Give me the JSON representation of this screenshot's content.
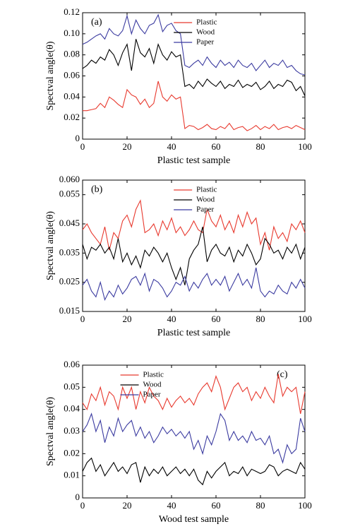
{
  "chart_data": [
    {
      "type": "line",
      "panel_label": "(a)",
      "panel_label_position": "left",
      "legend": "upper center",
      "xlabel": "Plastic test sample",
      "ylabel": "Spectval angle(θ)",
      "xlim": [
        0,
        100
      ],
      "xticks": [
        0,
        20,
        40,
        60,
        80,
        100
      ],
      "ylim": [
        0,
        0.12
      ],
      "yticks": [
        0,
        0.02,
        0.04,
        0.06,
        0.08,
        {
          "value": 0.1,
          "label": "0.10"
        },
        0.12
      ],
      "x": [
        0,
        2,
        4,
        6,
        8,
        10,
        12,
        14,
        16,
        18,
        20,
        22,
        24,
        26,
        28,
        30,
        32,
        34,
        36,
        38,
        40,
        42,
        44,
        46,
        48,
        50,
        52,
        54,
        56,
        58,
        60,
        62,
        64,
        66,
        68,
        70,
        72,
        74,
        76,
        78,
        80,
        82,
        84,
        86,
        88,
        90,
        92,
        94,
        96,
        98,
        100
      ],
      "series": [
        {
          "name": "Plastic",
          "color": "#e8392e",
          "values": [
            0.027,
            0.027,
            0.028,
            0.029,
            0.034,
            0.03,
            0.04,
            0.037,
            0.033,
            0.03,
            0.047,
            0.042,
            0.04,
            0.033,
            0.038,
            0.03,
            0.034,
            0.055,
            0.04,
            0.036,
            0.042,
            0.038,
            0.04,
            0.01,
            0.013,
            0.012,
            0.009,
            0.011,
            0.014,
            0.01,
            0.009,
            0.012,
            0.01,
            0.015,
            0.009,
            0.011,
            0.012,
            0.008,
            0.01,
            0.013,
            0.009,
            0.012,
            0.01,
            0.014,
            0.009,
            0.011,
            0.012,
            0.01,
            0.013,
            0.011,
            0.009
          ]
        },
        {
          "name": "Wood",
          "color": "#000000",
          "values": [
            0.067,
            0.07,
            0.075,
            0.072,
            0.078,
            0.075,
            0.085,
            0.08,
            0.07,
            0.082,
            0.09,
            0.065,
            0.095,
            0.082,
            0.078,
            0.086,
            0.072,
            0.09,
            0.08,
            0.075,
            0.083,
            0.078,
            0.08,
            0.05,
            0.052,
            0.048,
            0.055,
            0.05,
            0.057,
            0.053,
            0.05,
            0.055,
            0.048,
            0.052,
            0.05,
            0.056,
            0.049,
            0.052,
            0.05,
            0.054,
            0.047,
            0.05,
            0.055,
            0.048,
            0.052,
            0.05,
            0.056,
            0.054,
            0.046,
            0.05,
            0.041
          ]
        },
        {
          "name": "Paper",
          "color": "#3b3ba0",
          "values": [
            0.09,
            0.092,
            0.095,
            0.098,
            0.1,
            0.095,
            0.105,
            0.1,
            0.098,
            0.103,
            0.117,
            0.1,
            0.113,
            0.105,
            0.1,
            0.108,
            0.11,
            0.118,
            0.102,
            0.108,
            0.11,
            0.103,
            0.1,
            0.07,
            0.068,
            0.072,
            0.075,
            0.07,
            0.078,
            0.072,
            0.068,
            0.075,
            0.07,
            0.073,
            0.068,
            0.075,
            0.07,
            0.068,
            0.072,
            0.065,
            0.07,
            0.075,
            0.068,
            0.072,
            0.07,
            0.075,
            0.068,
            0.07,
            0.065,
            0.062,
            0.061
          ]
        }
      ]
    },
    {
      "type": "line",
      "panel_label": "(b)",
      "panel_label_position": "left",
      "legend": "upper center",
      "xlabel": "Plastic test sample",
      "ylabel": "Spectval angle(θ)",
      "xlim": [
        0,
        100
      ],
      "xticks": [
        0,
        20,
        40,
        60,
        80,
        100
      ],
      "ylim": [
        0.015,
        0.06
      ],
      "yticks": [
        0.015,
        0.025,
        0.035,
        0.045,
        0.055,
        {
          "value": 0.06,
          "label": "0.060"
        }
      ],
      "x": [
        0,
        2,
        4,
        6,
        8,
        10,
        12,
        14,
        16,
        18,
        20,
        22,
        24,
        26,
        28,
        30,
        32,
        34,
        36,
        38,
        40,
        42,
        44,
        46,
        48,
        50,
        52,
        54,
        56,
        58,
        60,
        62,
        64,
        66,
        68,
        70,
        72,
        74,
        76,
        78,
        80,
        82,
        84,
        86,
        88,
        90,
        92,
        94,
        96,
        98,
        100
      ],
      "series": [
        {
          "name": "Plastic",
          "color": "#e8392e",
          "values": [
            0.043,
            0.045,
            0.042,
            0.04,
            0.038,
            0.044,
            0.036,
            0.042,
            0.04,
            0.046,
            0.048,
            0.044,
            0.05,
            0.053,
            0.042,
            0.043,
            0.045,
            0.041,
            0.046,
            0.043,
            0.047,
            0.042,
            0.044,
            0.041,
            0.043,
            0.046,
            0.043,
            0.042,
            0.05,
            0.046,
            0.044,
            0.048,
            0.043,
            0.046,
            0.042,
            0.048,
            0.044,
            0.049,
            0.045,
            0.047,
            0.038,
            0.042,
            0.036,
            0.044,
            0.04,
            0.042,
            0.039,
            0.045,
            0.043,
            0.046,
            0.042
          ]
        },
        {
          "name": "Wood",
          "color": "#000000",
          "values": [
            0.038,
            0.033,
            0.037,
            0.036,
            0.038,
            0.035,
            0.037,
            0.033,
            0.04,
            0.032,
            0.035,
            0.031,
            0.034,
            0.03,
            0.036,
            0.034,
            0.037,
            0.035,
            0.032,
            0.035,
            0.03,
            0.026,
            0.03,
            0.024,
            0.033,
            0.036,
            0.038,
            0.044,
            0.032,
            0.036,
            0.038,
            0.035,
            0.034,
            0.037,
            0.032,
            0.036,
            0.034,
            0.038,
            0.035,
            0.031,
            0.033,
            0.04,
            0.038,
            0.035,
            0.036,
            0.033,
            0.037,
            0.035,
            0.038,
            0.033,
            0.037
          ]
        },
        {
          "name": "Paper",
          "color": "#3b3ba0",
          "values": [
            0.024,
            0.026,
            0.022,
            0.02,
            0.025,
            0.019,
            0.022,
            0.02,
            0.024,
            0.021,
            0.023,
            0.026,
            0.027,
            0.024,
            0.028,
            0.022,
            0.026,
            0.025,
            0.023,
            0.02,
            0.022,
            0.025,
            0.024,
            0.027,
            0.022,
            0.025,
            0.023,
            0.026,
            0.028,
            0.024,
            0.026,
            0.024,
            0.027,
            0.022,
            0.025,
            0.028,
            0.024,
            0.026,
            0.023,
            0.03,
            0.022,
            0.02,
            0.022,
            0.021,
            0.024,
            0.022,
            0.021,
            0.025,
            0.023,
            0.026,
            0.023
          ]
        }
      ]
    },
    {
      "type": "line",
      "panel_label": "(c)",
      "panel_label_position": "right",
      "legend": "upper left",
      "xlabel": "Wood test sample",
      "ylabel": "Spectval angle(θ)",
      "xlim": [
        0,
        100
      ],
      "xticks": [
        0,
        20,
        40,
        60,
        80,
        100
      ],
      "ylim": [
        0,
        0.06
      ],
      "yticks": [
        0,
        0.01,
        0.02,
        0.03,
        0.04,
        0.05,
        0.06
      ],
      "x": [
        0,
        2,
        4,
        6,
        8,
        10,
        12,
        14,
        16,
        18,
        20,
        22,
        24,
        26,
        28,
        30,
        32,
        34,
        36,
        38,
        40,
        42,
        44,
        46,
        48,
        50,
        52,
        54,
        56,
        58,
        60,
        62,
        64,
        66,
        68,
        70,
        72,
        74,
        76,
        78,
        80,
        82,
        84,
        86,
        88,
        90,
        92,
        94,
        96,
        98,
        100
      ],
      "series": [
        {
          "name": "Plastic",
          "color": "#e8392e",
          "values": [
            0.043,
            0.04,
            0.047,
            0.044,
            0.05,
            0.042,
            0.048,
            0.046,
            0.04,
            0.05,
            0.045,
            0.05,
            0.04,
            0.048,
            0.043,
            0.05,
            0.046,
            0.044,
            0.04,
            0.045,
            0.041,
            0.044,
            0.046,
            0.043,
            0.045,
            0.042,
            0.047,
            0.05,
            0.052,
            0.048,
            0.055,
            0.05,
            0.04,
            0.045,
            0.05,
            0.052,
            0.048,
            0.05,
            0.044,
            0.048,
            0.045,
            0.05,
            0.046,
            0.043,
            0.056,
            0.046,
            0.05,
            0.048,
            0.05,
            0.038,
            0.048
          ]
        },
        {
          "name": "Wood",
          "color": "#000000",
          "values": [
            0.012,
            0.016,
            0.018,
            0.012,
            0.015,
            0.01,
            0.013,
            0.016,
            0.012,
            0.014,
            0.011,
            0.015,
            0.016,
            0.007,
            0.014,
            0.01,
            0.013,
            0.011,
            0.014,
            0.01,
            0.012,
            0.014,
            0.011,
            0.013,
            0.01,
            0.013,
            0.008,
            0.006,
            0.012,
            0.009,
            0.012,
            0.014,
            0.016,
            0.01,
            0.012,
            0.011,
            0.014,
            0.01,
            0.013,
            0.012,
            0.011,
            0.012,
            0.015,
            0.014,
            0.01,
            0.012,
            0.013,
            0.012,
            0.011,
            0.016,
            0.013
          ]
        },
        {
          "name": "Paper",
          "color": "#3b3ba0",
          "values": [
            0.03,
            0.033,
            0.038,
            0.03,
            0.035,
            0.025,
            0.032,
            0.028,
            0.036,
            0.03,
            0.033,
            0.035,
            0.028,
            0.032,
            0.027,
            0.03,
            0.025,
            0.028,
            0.032,
            0.029,
            0.031,
            0.028,
            0.03,
            0.027,
            0.03,
            0.022,
            0.026,
            0.02,
            0.028,
            0.024,
            0.03,
            0.038,
            0.035,
            0.026,
            0.03,
            0.026,
            0.028,
            0.025,
            0.03,
            0.026,
            0.027,
            0.024,
            0.028,
            0.02,
            0.022,
            0.016,
            0.024,
            0.02,
            0.022,
            0.036,
            0.03
          ]
        }
      ]
    }
  ]
}
